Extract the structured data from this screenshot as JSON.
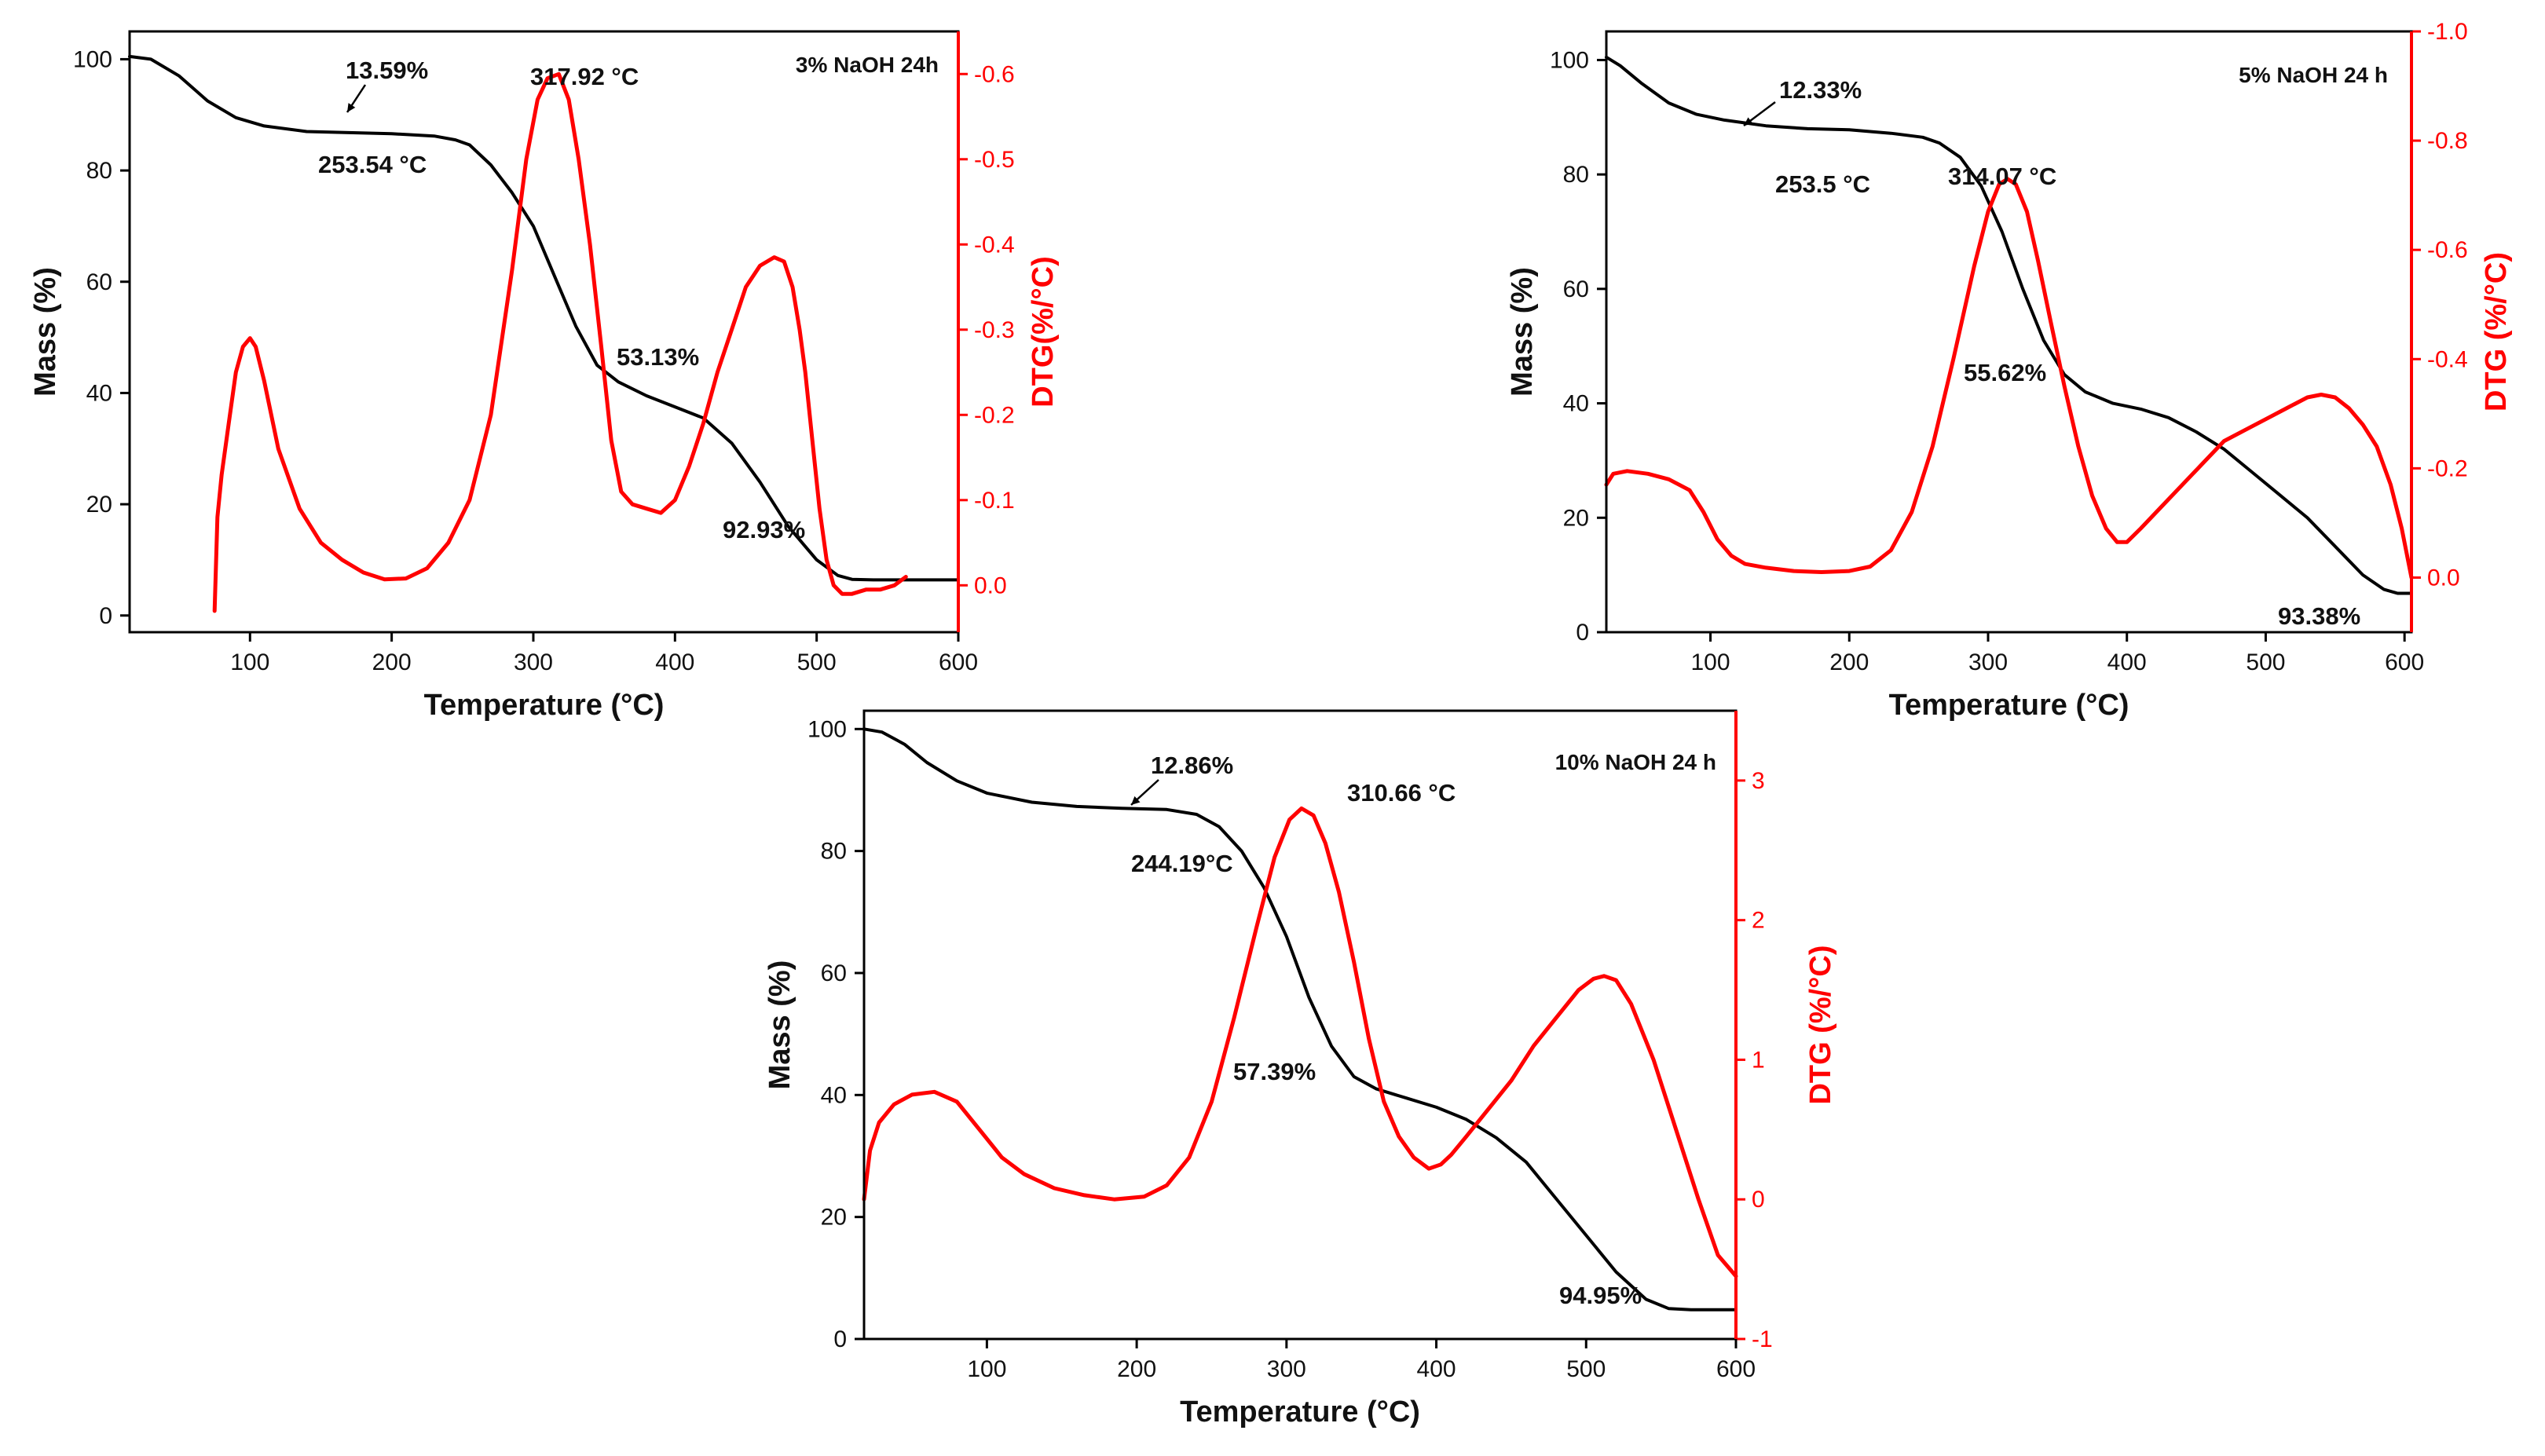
{
  "chart_data": [
    {
      "type": "line",
      "title": "3% NaOH 24h",
      "xlabel": "Temperature (°C)",
      "ylabel": "Mass (%)",
      "y2label": "DTG(%/°C)",
      "xlim": [
        15,
        600
      ],
      "ylim": [
        -3,
        105
      ],
      "y2lim": [
        0.055,
        -0.65
      ],
      "x_ticks": [
        100,
        200,
        300,
        400,
        500,
        600
      ],
      "y_ticks": [
        0,
        20,
        40,
        60,
        80,
        100
      ],
      "y2_ticks": [
        0.0,
        -0.1,
        -0.2,
        -0.3,
        -0.4,
        -0.5,
        -0.6
      ],
      "x_tick_labels": [
        "100",
        "200",
        "300",
        "400",
        "500",
        "600"
      ],
      "y_tick_labels": [
        "0",
        "20",
        "40",
        "60",
        "80",
        "100"
      ],
      "y2_tick_labels": [
        "0.0",
        "-0.1",
        "-0.2",
        "-0.3",
        "-0.4",
        "-0.5",
        "-0.6"
      ],
      "series": [
        {
          "name": "Mass",
          "axis": "left",
          "color": "#000000",
          "x": [
            15,
            30,
            50,
            70,
            90,
            110,
            140,
            170,
            200,
            230,
            245,
            255,
            270,
            285,
            300,
            315,
            330,
            345,
            360,
            380,
            400,
            420,
            440,
            460,
            480,
            500,
            515,
            525,
            540,
            560,
            580,
            600
          ],
          "y": [
            100.5,
            100,
            97,
            92.5,
            89.5,
            88,
            87,
            86.8,
            86.6,
            86.2,
            85.5,
            84.6,
            81,
            76,
            70,
            61,
            52,
            45,
            42,
            39.5,
            37.5,
            35.5,
            31,
            24,
            16,
            10,
            7.2,
            6.5,
            6.4,
            6.4,
            6.4,
            6.4
          ]
        },
        {
          "name": "DTG",
          "axis": "right",
          "color": "#ff0000",
          "x": [
            75,
            77,
            80,
            85,
            90,
            95,
            100,
            104,
            110,
            120,
            135,
            150,
            165,
            180,
            195,
            210,
            225,
            240,
            255,
            270,
            285,
            295,
            303,
            310,
            318,
            325,
            332,
            340,
            348,
            355,
            362,
            370,
            380,
            390,
            400,
            410,
            420,
            430,
            440,
            450,
            460,
            470,
            477,
            483,
            488,
            492,
            497,
            502,
            507,
            512,
            518,
            525,
            535,
            545,
            555,
            563
          ],
          "y": [
            0.03,
            -0.08,
            -0.13,
            -0.19,
            -0.25,
            -0.28,
            -0.29,
            -0.28,
            -0.24,
            -0.16,
            -0.09,
            -0.05,
            -0.03,
            -0.015,
            -0.007,
            -0.008,
            -0.02,
            -0.05,
            -0.1,
            -0.2,
            -0.37,
            -0.5,
            -0.57,
            -0.595,
            -0.6,
            -0.57,
            -0.5,
            -0.4,
            -0.28,
            -0.17,
            -0.11,
            -0.095,
            -0.09,
            -0.085,
            -0.1,
            -0.14,
            -0.19,
            -0.25,
            -0.3,
            -0.35,
            -0.375,
            -0.385,
            -0.38,
            -0.35,
            -0.3,
            -0.25,
            -0.17,
            -0.09,
            -0.03,
            0.0,
            0.01,
            0.01,
            0.005,
            0.005,
            0.0,
            -0.01
          ]
        }
      ],
      "annotations": [
        "13.59%",
        "253.54 °C",
        "317.92 °C",
        "53.13%",
        "92.93%"
      ]
    },
    {
      "type": "line",
      "title": "5% NaOH 24 h",
      "xlabel": "Temperature (°C)",
      "ylabel": "Mass (%)",
      "y2label": "DTG (%/°C)",
      "xlim": [
        25,
        605
      ],
      "ylim": [
        0,
        105
      ],
      "y2lim": [
        0.1,
        -1.0
      ],
      "x_ticks": [
        100,
        200,
        300,
        400,
        500,
        600
      ],
      "y_ticks": [
        0,
        20,
        40,
        60,
        80,
        100
      ],
      "y2_ticks": [
        0.0,
        -0.2,
        -0.4,
        -0.6,
        -0.8,
        -1.0
      ],
      "x_tick_labels": [
        "100",
        "200",
        "300",
        "400",
        "500",
        "600"
      ],
      "y_tick_labels": [
        "0",
        "20",
        "40",
        "60",
        "80",
        "100"
      ],
      "y2_tick_labels": [
        "0.0",
        "-0.2",
        "-0.4",
        "-0.6",
        "-0.8",
        "-1.0"
      ],
      "series": [
        {
          "name": "Mass",
          "axis": "left",
          "color": "#000000",
          "x": [
            25,
            35,
            50,
            70,
            90,
            110,
            140,
            170,
            200,
            230,
            253,
            265,
            280,
            295,
            310,
            325,
            340,
            355,
            370,
            390,
            410,
            430,
            450,
            470,
            490,
            510,
            530,
            550,
            570,
            585,
            595,
            605
          ],
          "y": [
            100.5,
            99,
            96,
            92.5,
            90.5,
            89.5,
            88.5,
            88,
            87.8,
            87.2,
            86.5,
            85.5,
            83,
            78,
            70,
            60,
            51,
            45,
            42,
            40,
            39,
            37.5,
            35,
            32,
            28,
            24,
            20,
            15,
            10,
            7.5,
            6.8,
            6.8
          ]
        },
        {
          "name": "DTG",
          "axis": "right",
          "color": "#ff0000",
          "x": [
            25,
            30,
            40,
            55,
            70,
            85,
            95,
            105,
            115,
            125,
            140,
            160,
            180,
            200,
            215,
            230,
            245,
            260,
            275,
            290,
            300,
            308,
            314,
            320,
            328,
            336,
            345,
            355,
            365,
            375,
            385,
            393,
            400,
            410,
            425,
            440,
            455,
            470,
            485,
            500,
            515,
            530,
            540,
            550,
            560,
            570,
            580,
            590,
            598,
            605
          ],
          "y": [
            -0.17,
            -0.19,
            -0.195,
            -0.19,
            -0.18,
            -0.16,
            -0.12,
            -0.07,
            -0.04,
            -0.025,
            -0.018,
            -0.012,
            -0.01,
            -0.012,
            -0.02,
            -0.05,
            -0.12,
            -0.24,
            -0.4,
            -0.57,
            -0.67,
            -0.72,
            -0.73,
            -0.72,
            -0.67,
            -0.58,
            -0.47,
            -0.35,
            -0.24,
            -0.15,
            -0.09,
            -0.065,
            -0.065,
            -0.09,
            -0.13,
            -0.17,
            -0.21,
            -0.25,
            -0.27,
            -0.29,
            -0.31,
            -0.33,
            -0.335,
            -0.33,
            -0.31,
            -0.28,
            -0.24,
            -0.17,
            -0.09,
            0.0
          ]
        }
      ],
      "annotations": [
        "12.33%",
        "253.5 °C",
        "314.07 °C",
        "55.62%",
        "93.38%"
      ]
    },
    {
      "type": "line",
      "title": "10% NaOH 24 h",
      "xlabel": "Temperature (°C)",
      "ylabel": "Mass (%)",
      "y2label": "DTG (%/°C)",
      "xlim": [
        18,
        600
      ],
      "ylim": [
        0,
        103
      ],
      "y2lim": [
        -1,
        3.5
      ],
      "x_ticks": [
        100,
        200,
        300,
        400,
        500,
        600
      ],
      "y_ticks": [
        0,
        20,
        40,
        60,
        80,
        100
      ],
      "y2_ticks": [
        -1,
        0,
        1,
        2,
        3
      ],
      "x_tick_labels": [
        "100",
        "200",
        "300",
        "400",
        "500",
        "600"
      ],
      "y_tick_labels": [
        "0",
        "20",
        "40",
        "60",
        "80",
        "100"
      ],
      "y2_tick_labels": [
        "-1",
        "0",
        "1",
        "2",
        "3"
      ],
      "series": [
        {
          "name": "Mass",
          "axis": "left",
          "color": "#000000",
          "x": [
            18,
            30,
            45,
            60,
            80,
            100,
            130,
            160,
            190,
            220,
            240,
            255,
            270,
            285,
            300,
            315,
            330,
            345,
            360,
            380,
            400,
            420,
            440,
            460,
            480,
            500,
            520,
            540,
            555,
            570,
            585,
            600
          ],
          "y": [
            100,
            99.5,
            97.5,
            94.5,
            91.5,
            89.5,
            88,
            87.3,
            87,
            86.8,
            86,
            84,
            80,
            74,
            66,
            56,
            48,
            43,
            41,
            39.5,
            38,
            36,
            33,
            29,
            23,
            17,
            11,
            6.5,
            5,
            4.8,
            4.8,
            4.8
          ]
        },
        {
          "name": "DTG",
          "axis": "right",
          "color": "#ff0000",
          "x": [
            18,
            22,
            28,
            38,
            50,
            65,
            80,
            95,
            110,
            125,
            145,
            165,
            185,
            205,
            220,
            235,
            250,
            265,
            280,
            292,
            302,
            310,
            318,
            326,
            335,
            345,
            355,
            365,
            375,
            385,
            395,
            403,
            410,
            420,
            435,
            450,
            465,
            480,
            495,
            505,
            512,
            520,
            530,
            545,
            560,
            575,
            588,
            600
          ],
          "y": [
            0.0,
            0.35,
            0.55,
            0.68,
            0.75,
            0.77,
            0.7,
            0.5,
            0.3,
            0.18,
            0.08,
            0.03,
            0.0,
            0.02,
            0.1,
            0.3,
            0.7,
            1.3,
            1.95,
            2.45,
            2.72,
            2.8,
            2.75,
            2.55,
            2.2,
            1.7,
            1.15,
            0.7,
            0.45,
            0.3,
            0.22,
            0.25,
            0.32,
            0.45,
            0.65,
            0.85,
            1.1,
            1.3,
            1.5,
            1.58,
            1.6,
            1.57,
            1.4,
            1.0,
            0.5,
            0.0,
            -0.4,
            -0.55
          ]
        }
      ],
      "annotations": [
        "12.86%",
        "244.19°C",
        "310.66 °C",
        "57.39%",
        "94.95%"
      ]
    }
  ]
}
